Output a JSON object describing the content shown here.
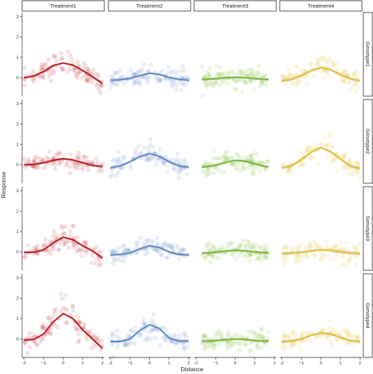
{
  "chart_data": {
    "type": "scatter",
    "layout": "facet_grid",
    "xlabel": "Distance",
    "ylabel": "Response",
    "xlim": [
      -2.1,
      2.1
    ],
    "ylim": [
      -0.9,
      3.2
    ],
    "x_ticks": [
      -2,
      -1,
      0,
      1,
      2
    ],
    "x_tick_labels": [
      "-2",
      "−1",
      "0",
      "1",
      "2"
    ],
    "y_ticks": [
      0,
      1,
      2,
      3
    ],
    "y_tick_labels": [
      "0",
      "1",
      "2",
      "3"
    ],
    "columns": [
      "Treatment1",
      "Treatment2",
      "Treatment3",
      "Treatment4"
    ],
    "rows": [
      "Genotype1",
      "Genotype2",
      "Genotype3",
      "Genotype4"
    ],
    "column_colors": [
      "#c0161c",
      "#5b87cc",
      "#77b82a",
      "#e8c12c"
    ],
    "column_x_range": [
      [
        -2.0,
        2.0
      ],
      [
        -2.0,
        2.0
      ],
      [
        -1.7,
        1.7
      ],
      [
        -2.0,
        2.0
      ]
    ],
    "smooth_x": [
      -2.0,
      -1.5,
      -1.0,
      -0.5,
      0.0,
      0.5,
      1.0,
      1.5,
      2.0
    ],
    "panels": [
      {
        "row": "Genotype1",
        "column": "Treatment1",
        "curve": [
          0.0,
          0.08,
          0.3,
          0.6,
          0.72,
          0.62,
          0.35,
          0.05,
          -0.28
        ]
      },
      {
        "row": "Genotype1",
        "column": "Treatment2",
        "curve": [
          -0.12,
          -0.1,
          -0.03,
          0.1,
          0.22,
          0.16,
          0.02,
          -0.08,
          -0.12
        ]
      },
      {
        "row": "Genotype1",
        "column": "Treatment3",
        "curve": [
          -0.1,
          -0.08,
          -0.05,
          0.0,
          0.02,
          0.0,
          -0.04,
          -0.08,
          -0.1
        ]
      },
      {
        "row": "Genotype1",
        "column": "Treatment4",
        "curve": [
          -0.15,
          -0.08,
          0.1,
          0.35,
          0.5,
          0.4,
          0.15,
          -0.05,
          -0.15
        ]
      },
      {
        "row": "Genotype2",
        "column": "Treatment1",
        "curve": [
          0.0,
          0.02,
          0.1,
          0.22,
          0.3,
          0.24,
          0.1,
          -0.03,
          -0.08
        ]
      },
      {
        "row": "Genotype2",
        "column": "Treatment2",
        "curve": [
          -0.15,
          -0.05,
          0.15,
          0.4,
          0.55,
          0.42,
          0.15,
          -0.05,
          -0.12
        ]
      },
      {
        "row": "Genotype2",
        "column": "Treatment3",
        "curve": [
          -0.12,
          -0.1,
          -0.02,
          0.12,
          0.22,
          0.18,
          0.05,
          -0.08,
          -0.12
        ]
      },
      {
        "row": "Genotype2",
        "column": "Treatment4",
        "curve": [
          -0.15,
          -0.05,
          0.25,
          0.62,
          0.85,
          0.65,
          0.28,
          -0.05,
          -0.18
        ]
      },
      {
        "row": "Genotype3",
        "column": "Treatment1",
        "curve": [
          -0.02,
          -0.02,
          0.1,
          0.45,
          0.72,
          0.6,
          0.3,
          0.05,
          -0.3
        ]
      },
      {
        "row": "Genotype3",
        "column": "Treatment2",
        "curve": [
          -0.15,
          -0.12,
          -0.05,
          0.15,
          0.3,
          0.22,
          0.0,
          -0.12,
          -0.15
        ]
      },
      {
        "row": "Genotype3",
        "column": "Treatment3",
        "curve": [
          -0.08,
          -0.05,
          -0.02,
          0.04,
          0.08,
          0.05,
          0.0,
          -0.04,
          -0.06
        ]
      },
      {
        "row": "Genotype3",
        "column": "Treatment4",
        "curve": [
          -0.08,
          -0.06,
          -0.02,
          0.05,
          0.1,
          0.08,
          0.0,
          -0.05,
          -0.08
        ]
      },
      {
        "row": "Genotype4",
        "column": "Treatment1",
        "curve": [
          -0.05,
          -0.02,
          0.25,
          0.85,
          1.25,
          1.0,
          0.45,
          0.0,
          -0.45
        ]
      },
      {
        "row": "Genotype4",
        "column": "Treatment2",
        "curve": [
          -0.12,
          -0.12,
          0.0,
          0.42,
          0.7,
          0.52,
          0.05,
          -0.1,
          -0.1
        ]
      },
      {
        "row": "Genotype4",
        "column": "Treatment3",
        "curve": [
          -0.1,
          -0.1,
          -0.08,
          -0.03,
          0.0,
          -0.02,
          -0.08,
          -0.1,
          -0.1
        ]
      },
      {
        "row": "Genotype4",
        "column": "Treatment4",
        "curve": [
          -0.12,
          -0.1,
          0.0,
          0.18,
          0.3,
          0.25,
          0.08,
          -0.08,
          -0.12
        ]
      }
    ]
  }
}
